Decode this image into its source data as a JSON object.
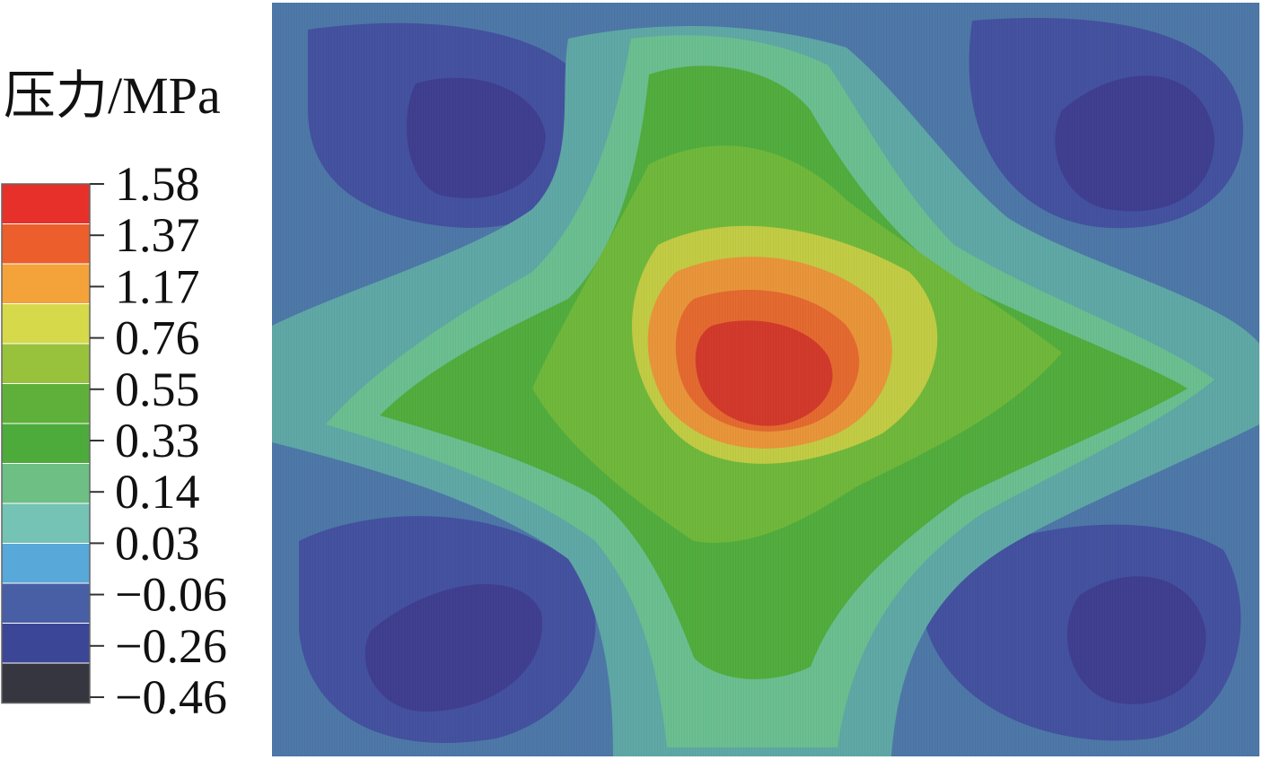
{
  "chart_data": {
    "type": "heatmap",
    "colorbar": {
      "title": "压力/MPa",
      "ticks": [
        "1.58",
        "1.37",
        "1.17",
        "0.76",
        "0.55",
        "0.33",
        "0.14",
        "0.03",
        "−0.06",
        "−0.26",
        "−0.46"
      ],
      "colors": [
        "#e8302a",
        "#ec5e2c",
        "#f4a23a",
        "#d6d94a",
        "#98c23c",
        "#5fb03a",
        "#4dab3c",
        "#6dbf84",
        "#74c3b5",
        "#58a8da",
        "#485fa6",
        "#3c4697",
        "#363640"
      ],
      "placement": "left"
    },
    "field": {
      "description_values": {
        "center_peak": 1.58,
        "corner_minimum": -0.26
      }
    }
  }
}
